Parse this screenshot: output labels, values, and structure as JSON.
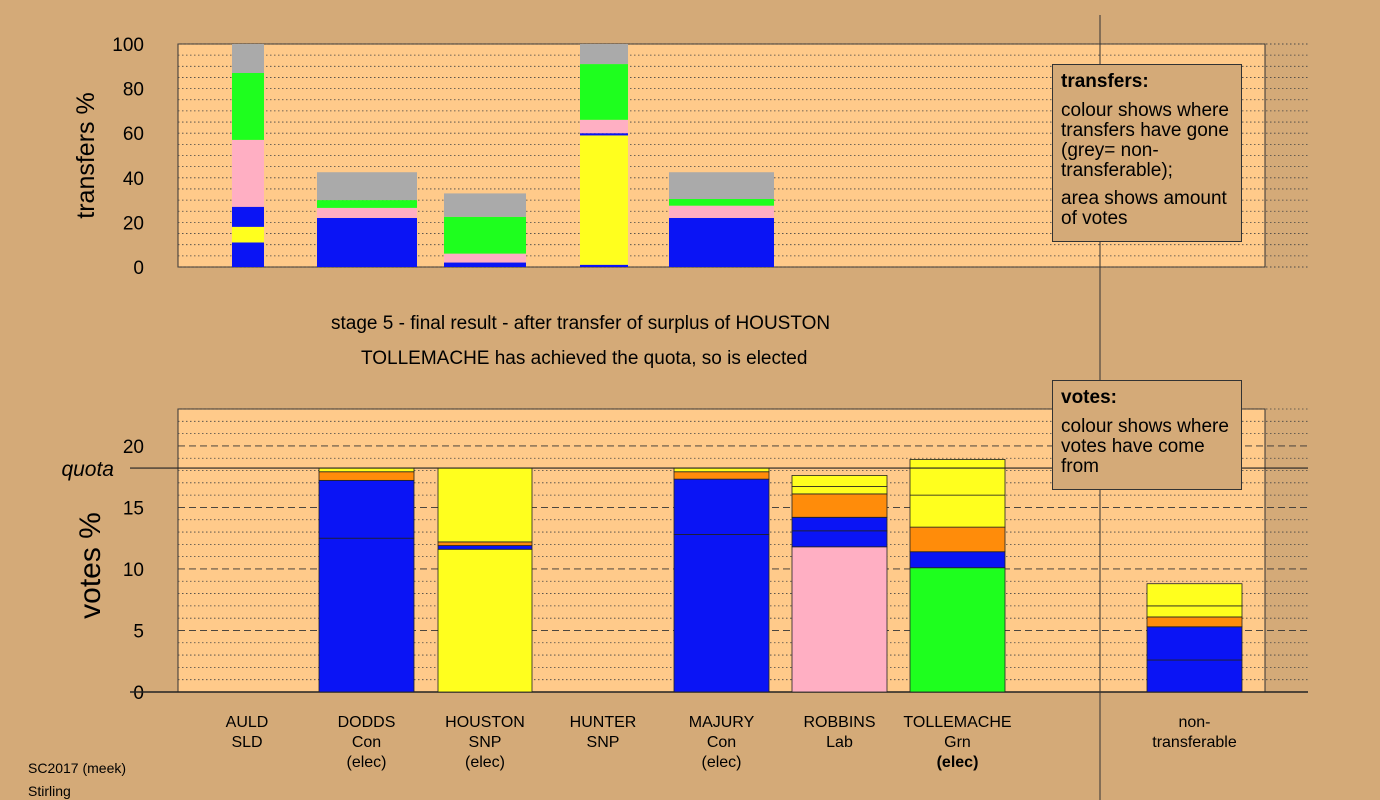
{
  "captions": {
    "stage": "stage 5 - final result - after transfer of surplus of HOUSTON",
    "elected": "TOLLEMACHE has achieved the quota, so is elected"
  },
  "legend_transfers": {
    "title": "transfers:",
    "line1": "colour shows where transfers have gone (grey= non-transferable);",
    "line2": "area shows amount of votes"
  },
  "legend_votes": {
    "title": "votes:",
    "line1": "colour shows where votes have come from"
  },
  "footer": {
    "line1": "SC2017 (meek)",
    "line2": "Stirling"
  },
  "colors": {
    "background": "#d4aa78",
    "plot_background": "#ffca8a",
    "Con": "#0a14f5",
    "SNP": "#ffff1e",
    "Lab": "#ffafc3",
    "Grn": "#1eff1e",
    "SLD": "#ff8c0a",
    "nontransferable": "#aaaaaa"
  },
  "chart_data": [
    {
      "type": "bar",
      "stacked": true,
      "ylabel": "transfers %",
      "ylim": [
        0,
        100
      ],
      "yticks": [
        0,
        20,
        40,
        60,
        80,
        100
      ],
      "columns": [
        {
          "segments": [
            {
              "color": "Con",
              "value": 11
            },
            {
              "color": "SNP",
              "value": 7
            },
            {
              "color": "Con",
              "value": 9
            },
            {
              "color": "Lab",
              "value": 30
            },
            {
              "color": "Grn",
              "value": 30
            },
            {
              "color": "nontransferable",
              "value": 13
            }
          ]
        },
        {
          "segments": [
            {
              "color": "Con",
              "value": 22
            },
            {
              "color": "Lab",
              "value": 4.5
            },
            {
              "color": "Grn",
              "value": 3.5
            },
            {
              "color": "nontransferable",
              "value": 12.5
            }
          ]
        },
        {
          "segments": [
            {
              "color": "Con",
              "value": 2
            },
            {
              "color": "Lab",
              "value": 4
            },
            {
              "color": "Grn",
              "value": 16.5
            },
            {
              "color": "nontransferable",
              "value": 10.5
            }
          ]
        },
        {
          "segments": [
            {
              "color": "Con",
              "value": 1
            },
            {
              "color": "SNP",
              "value": 58
            },
            {
              "color": "Con",
              "value": 1
            },
            {
              "color": "Lab",
              "value": 6
            },
            {
              "color": "Grn",
              "value": 25
            },
            {
              "color": "nontransferable",
              "value": 9
            }
          ]
        },
        {
          "segments": [
            {
              "color": "Con",
              "value": 22
            },
            {
              "color": "Lab",
              "value": 5.5
            },
            {
              "color": "Grn",
              "value": 3
            },
            {
              "color": "nontransferable",
              "value": 12
            }
          ]
        }
      ]
    },
    {
      "type": "bar",
      "stacked": true,
      "ylabel": "votes %",
      "ylim": [
        0,
        23
      ],
      "yticks": [
        0,
        5,
        10,
        15,
        20
      ],
      "quota": 18.2,
      "quota_label": "quota",
      "candidates": [
        {
          "name": "AULD",
          "party": "SLD",
          "status": "",
          "segments": []
        },
        {
          "name": "DODDS",
          "party": "Con",
          "status": "(elec)",
          "segments": [
            {
              "color": "Con",
              "value": 12.5
            },
            {
              "color": "Con",
              "value": 4.7
            },
            {
              "color": "SLD",
              "value": 0.7
            },
            {
              "color": "SNP",
              "value": 0.3
            }
          ]
        },
        {
          "name": "HOUSTON",
          "party": "SNP",
          "status": "(elec)",
          "segments": [
            {
              "color": "SNP",
              "value": 11.6
            },
            {
              "color": "Con",
              "value": 0.3
            },
            {
              "color": "SLD",
              "value": 0.3
            },
            {
              "color": "SNP",
              "value": 6
            }
          ]
        },
        {
          "name": "HUNTER",
          "party": "SNP",
          "status": "",
          "segments": []
        },
        {
          "name": "MAJURY",
          "party": "Con",
          "status": "(elec)",
          "segments": [
            {
              "color": "Con",
              "value": 12.8
            },
            {
              "color": "Con",
              "value": 4.5
            },
            {
              "color": "SLD",
              "value": 0.6
            },
            {
              "color": "SNP",
              "value": 0.3
            }
          ]
        },
        {
          "name": "ROBBINS",
          "party": "Lab",
          "status": "",
          "segments": [
            {
              "color": "Lab",
              "value": 11.8
            },
            {
              "color": "Con",
              "value": 1.3
            },
            {
              "color": "Con",
              "value": 1.1
            },
            {
              "color": "SLD",
              "value": 1.9
            },
            {
              "color": "SNP",
              "value": 0.6
            },
            {
              "color": "SNP",
              "value": 0.9
            }
          ]
        },
        {
          "name": "TOLLEMACHE",
          "party": "Grn",
          "status": "(elec)",
          "segments": [
            {
              "color": "Grn",
              "value": 10.1
            },
            {
              "color": "Con",
              "value": 1.3
            },
            {
              "color": "SLD",
              "value": 2.0
            },
            {
              "color": "SNP",
              "value": 2.6
            },
            {
              "color": "SNP",
              "value": 2.9
            }
          ]
        },
        {
          "name": "non-",
          "party": "transferable",
          "status": "",
          "segments": [
            {
              "color": "Con",
              "value": 2.6
            },
            {
              "color": "Con",
              "value": 2.7
            },
            {
              "color": "SLD",
              "value": 0.8
            },
            {
              "color": "SNP",
              "value": 0.9
            },
            {
              "color": "SNP",
              "value": 1.8
            }
          ]
        }
      ]
    }
  ]
}
